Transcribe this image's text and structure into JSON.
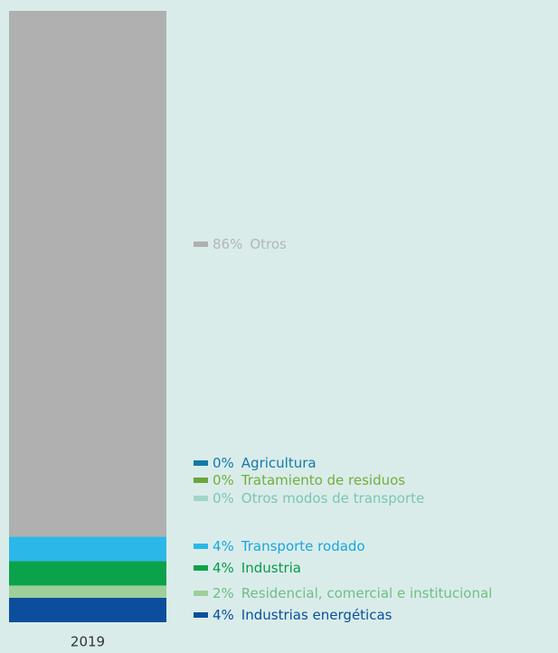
{
  "chart_data": {
    "type": "stacked-bar",
    "categories": [
      "2019"
    ],
    "series": [
      {
        "name": "Industrias energéticas",
        "color": "#0b4f9c",
        "text_color": "#0b4f9c",
        "values": [
          4
        ],
        "value_labels": [
          "4%"
        ]
      },
      {
        "name": "Residencial, comercial e institucional",
        "color": "#9ccf9c",
        "text_color": "#6fbf82",
        "values": [
          2
        ],
        "value_labels": [
          "2%"
        ]
      },
      {
        "name": "Industria",
        "color": "#0ca24b",
        "text_color": "#0a9a48",
        "values": [
          4
        ],
        "value_labels": [
          "4%"
        ]
      },
      {
        "name": "Transporte rodado",
        "color": "#2bb8e8",
        "text_color": "#1aa6dc",
        "values": [
          4
        ],
        "value_labels": [
          "4%"
        ]
      },
      {
        "name": "Otros modos de transporte",
        "color": "#9fd6c8",
        "text_color": "#7cc5b4",
        "values": [
          0
        ],
        "value_labels": [
          "0%"
        ]
      },
      {
        "name": "Tratamiento de residuos",
        "color": "#6aa63a",
        "text_color": "#74ad3e",
        "values": [
          0
        ],
        "value_labels": [
          "0%"
        ]
      },
      {
        "name": "Agricultura",
        "color": "#1479a8",
        "text_color": "#1479a8",
        "values": [
          0
        ],
        "value_labels": [
          "0%"
        ]
      },
      {
        "name": "Otros",
        "color": "#b0b0b0",
        "text_color": "#b5b5b5",
        "values": [
          86
        ],
        "value_labels": [
          "86%"
        ]
      }
    ]
  }
}
